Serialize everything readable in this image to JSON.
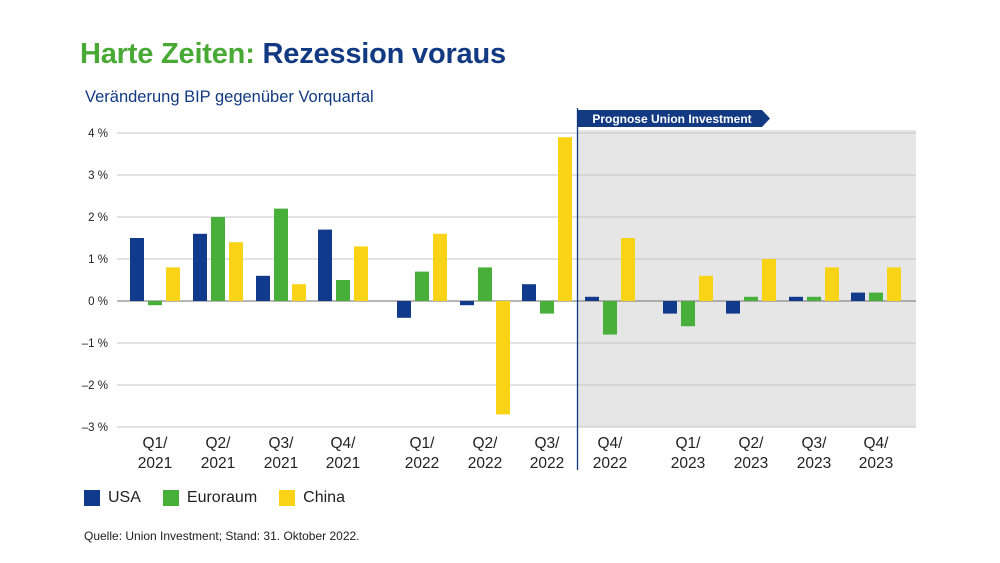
{
  "header": {
    "title_part1": "Harte Zeiten:",
    "title_part2": "Rezession voraus",
    "subtitle": "Veränderung BIP gegenüber Vorquartal"
  },
  "forecast_label": "Prognose Union Investment",
  "source": "Quelle: Union Investment; Stand: 31. Oktober 2022.",
  "colors": {
    "usa": "#123a8c",
    "euroraum": "#48b03a",
    "china": "#f9d316",
    "forecast_bg": "#e6e6e6",
    "grid": "#c4c4c4",
    "divider": "#123a83"
  },
  "chart_data": {
    "type": "bar",
    "categories": [
      "Q1/ 2021",
      "Q2/ 2021",
      "Q3/ 2021",
      "Q4/ 2021",
      "Q1/ 2022",
      "Q2/ 2022",
      "Q3/ 2022",
      "Q4/ 2022",
      "Q1/ 2023",
      "Q2/ 2023",
      "Q3/ 2023",
      "Q4/ 2023"
    ],
    "series": [
      {
        "name": "USA",
        "values": [
          1.5,
          1.6,
          0.6,
          1.7,
          -0.4,
          -0.1,
          0.4,
          0.1,
          -0.3,
          -0.3,
          0.1,
          0.2
        ]
      },
      {
        "name": "Euroraum",
        "values": [
          -0.1,
          2.0,
          2.2,
          0.5,
          0.7,
          0.8,
          -0.3,
          -0.8,
          -0.6,
          0.1,
          0.1,
          0.2
        ]
      },
      {
        "name": "China",
        "values": [
          0.8,
          1.4,
          0.4,
          1.3,
          1.6,
          -2.7,
          3.9,
          1.5,
          0.6,
          1.0,
          0.8,
          0.8
        ]
      }
    ],
    "y_ticks": [
      "4 %",
      "3 %",
      "2 %",
      "1 %",
      "0 %",
      "–1 %",
      "–2 %",
      "–3 %"
    ],
    "ylim": [
      -3,
      4
    ],
    "grid": true,
    "forecast_start_category": "Q4/ 2022",
    "legend_position": "bottom-left"
  }
}
